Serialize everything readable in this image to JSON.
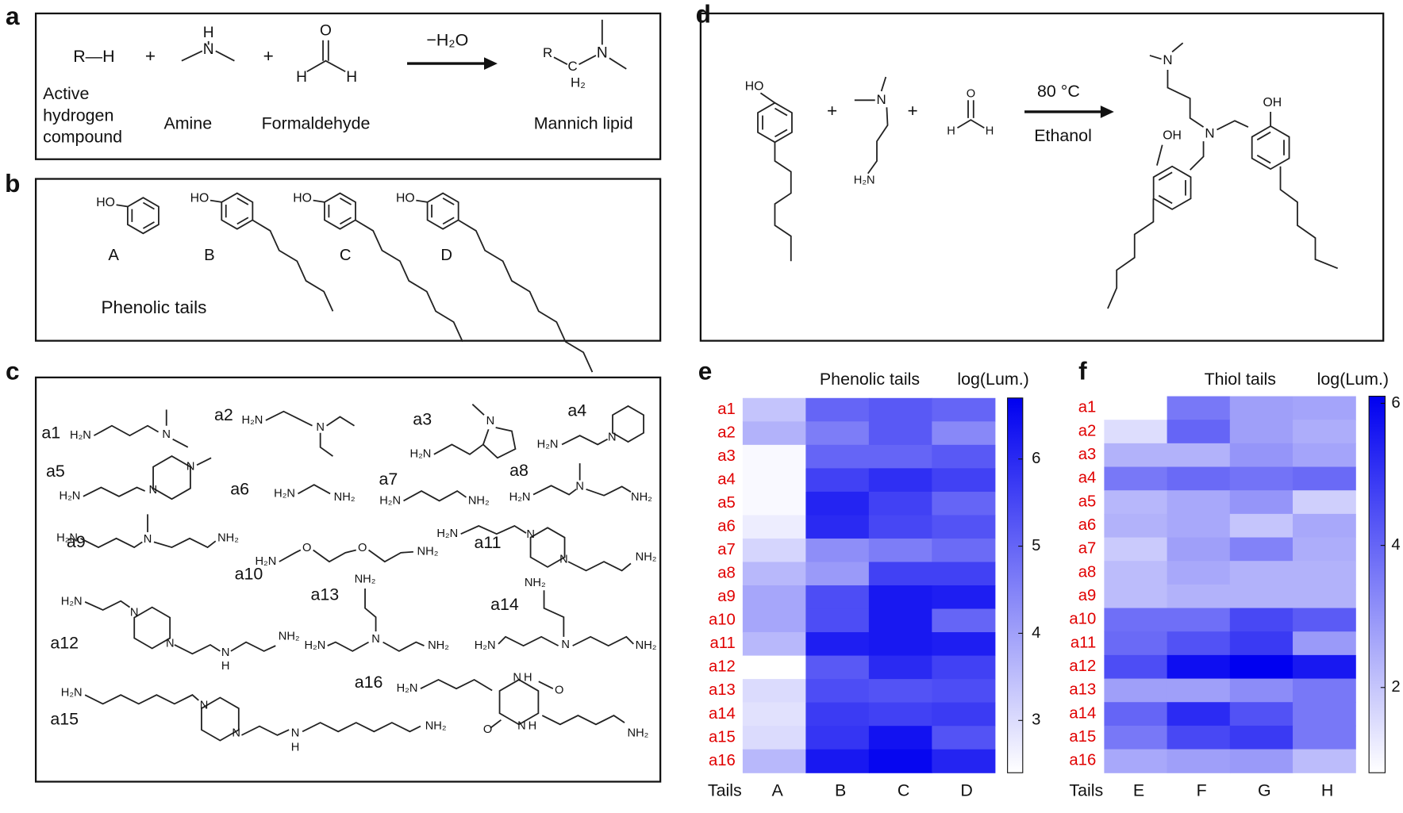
{
  "panel_a": {
    "label": "a",
    "rh": "R—H",
    "plus1": "+",
    "plus2": "+",
    "amine_n": "N",
    "amine_h": "H",
    "form_o": "O",
    "form_h1": "H",
    "form_h2": "H",
    "arrow": "−H₂O",
    "prod_r": "R",
    "prod_c": "C",
    "prod_n": "N",
    "prod_h2": "H₂",
    "active": [
      "Active",
      "hydrogen",
      "compound"
    ],
    "amine": "Amine",
    "formaldehyde": "Formaldehyde",
    "product": "Mannich lipid"
  },
  "panel_b": {
    "label": "b",
    "ho": "HO",
    "tails": [
      "A",
      "B",
      "C",
      "D"
    ],
    "caption": "Phenolic tails"
  },
  "panel_c": {
    "label": "c",
    "compounds": [
      {
        "name": "a1",
        "atoms": [
          "H₂N",
          "N"
        ]
      },
      {
        "name": "a2",
        "atoms": [
          "H₂N",
          "N"
        ]
      },
      {
        "name": "a3",
        "atoms": [
          "H₂N",
          "N"
        ]
      },
      {
        "name": "a4",
        "atoms": [
          "H₂N",
          "N"
        ]
      },
      {
        "name": "a5",
        "atoms": [
          "H₂N",
          "N",
          "N"
        ]
      },
      {
        "name": "a6",
        "atoms": [
          "H₂N",
          "NH₂"
        ]
      },
      {
        "name": "a7",
        "atoms": [
          "H₂N",
          "NH₂"
        ]
      },
      {
        "name": "a8",
        "atoms": [
          "H₂N",
          "N",
          "NH₂"
        ]
      },
      {
        "name": "a9",
        "atoms": [
          "H₂N",
          "N",
          "NH₂"
        ]
      },
      {
        "name": "a10",
        "atoms": [
          "H₂N",
          "O",
          "O",
          "NH₂"
        ]
      },
      {
        "name": "a11",
        "atoms": [
          "H₂N",
          "N",
          "N",
          "NH₂"
        ]
      },
      {
        "name": "a12",
        "atoms": [
          "H₂N",
          "N",
          "N",
          "N",
          "H",
          "NH₂"
        ]
      },
      {
        "name": "a13",
        "atoms": [
          "NH₂",
          "H₂N",
          "N",
          "NH₂"
        ]
      },
      {
        "name": "a14",
        "atoms": [
          "NH₂",
          "H₂N",
          "N",
          "NH₂"
        ]
      },
      {
        "name": "a15",
        "atoms": [
          "H₂N",
          "N",
          "N",
          "N",
          "H",
          "NH₂"
        ]
      },
      {
        "name": "a16",
        "atoms": [
          "H₂N",
          "N",
          "H",
          "O",
          "O",
          "N",
          "H",
          "NH₂"
        ]
      }
    ]
  },
  "panel_d": {
    "label": "d",
    "ho": "HO",
    "plus1": "+",
    "plus2": "+",
    "amine_n": "N",
    "amine_nh2": "H₂N",
    "form_o": "O",
    "form_h1": "H",
    "form_h2": "H",
    "temp": "80 °C",
    "solvent": "Ethanol",
    "prod_n1": "N",
    "prod_n2": "N",
    "prod_oh1": "OH",
    "prod_oh2": "OH"
  },
  "chart_data": [
    {
      "type": "heatmap",
      "label": "e",
      "title": "Phenolic tails",
      "colorbar_label": "log(Lum.)",
      "x_label": "Tails",
      "columns": [
        "A",
        "B",
        "C",
        "D"
      ],
      "rows": [
        "a1",
        "a2",
        "a3",
        "a4",
        "a5",
        "a6",
        "a7",
        "a8",
        "a9",
        "a10",
        "a11",
        "a12",
        "a13",
        "a14",
        "a15",
        "a16"
      ],
      "values": [
        [
          3.4,
          5.0,
          5.2,
          5.0
        ],
        [
          3.7,
          4.6,
          5.2,
          4.4
        ],
        [
          2.5,
          5.0,
          5.0,
          5.2
        ],
        [
          2.5,
          5.6,
          5.9,
          5.6
        ],
        [
          2.5,
          6.1,
          5.6,
          5.0
        ],
        [
          2.7,
          6.0,
          5.5,
          5.3
        ],
        [
          3.1,
          4.3,
          4.6,
          4.9
        ],
        [
          3.6,
          4.1,
          5.6,
          5.6
        ],
        [
          3.9,
          5.4,
          6.3,
          6.2
        ],
        [
          3.9,
          5.4,
          6.3,
          5.0
        ],
        [
          3.6,
          6.2,
          6.3,
          6.2
        ],
        [
          2.4,
          5.2,
          6.0,
          5.6
        ],
        [
          3.0,
          5.4,
          5.3,
          5.4
        ],
        [
          2.9,
          5.7,
          5.6,
          5.7
        ],
        [
          3.0,
          5.8,
          6.4,
          5.3
        ],
        [
          3.6,
          6.3,
          6.6,
          6.1
        ]
      ],
      "clim": [
        2.4,
        6.7
      ],
      "cticks": [
        3,
        4,
        5,
        6
      ],
      "colors": [
        "#ffffff",
        "#0000f0"
      ],
      "row_label_color": "#e00000"
    },
    {
      "type": "heatmap",
      "label": "f",
      "title": "Thiol tails",
      "colorbar_label": "log(Lum.)",
      "x_label": "Tails",
      "columns": [
        "E",
        "F",
        "G",
        "H"
      ],
      "rows": [
        "a1",
        "a2",
        "a3",
        "a4",
        "a5",
        "a6",
        "a7",
        "a8",
        "a9",
        "a10",
        "a11",
        "a12",
        "a13",
        "a14",
        "a15",
        "a16"
      ],
      "values": [
        [
          0.8,
          3.6,
          2.8,
          2.7
        ],
        [
          1.5,
          4.0,
          2.8,
          2.5
        ],
        [
          2.4,
          2.4,
          3.0,
          2.7
        ],
        [
          3.6,
          3.9,
          3.7,
          3.9
        ],
        [
          2.3,
          2.6,
          3.0,
          1.8
        ],
        [
          2.4,
          2.6,
          2.0,
          2.6
        ],
        [
          1.9,
          2.8,
          3.4,
          2.5
        ],
        [
          2.2,
          2.6,
          2.4,
          2.4
        ],
        [
          2.2,
          2.4,
          2.4,
          2.4
        ],
        [
          3.8,
          3.8,
          4.6,
          4.2
        ],
        [
          3.9,
          4.4,
          4.9,
          2.9
        ],
        [
          4.5,
          5.8,
          6.1,
          5.6
        ],
        [
          2.8,
          2.8,
          3.2,
          3.6
        ],
        [
          4.0,
          5.2,
          4.4,
          3.6
        ],
        [
          3.6,
          4.6,
          4.9,
          3.6
        ],
        [
          2.6,
          2.8,
          2.9,
          2.2
        ]
      ],
      "clim": [
        0.8,
        6.1
      ],
      "cticks": [
        2,
        4,
        6
      ],
      "colors": [
        "#ffffff",
        "#0000f0"
      ],
      "row_label_color": "#e00000"
    }
  ]
}
